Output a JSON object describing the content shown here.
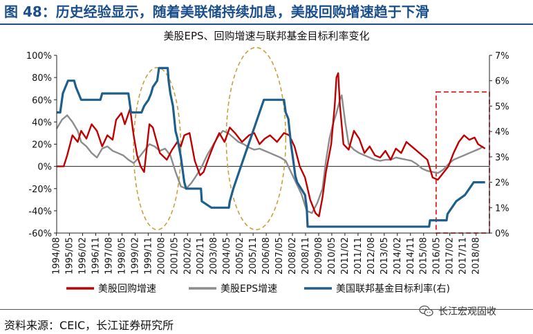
{
  "figure": {
    "title": "图 48：历史经验显示，随着美联储持续加息，美股回购增速趋于下滑",
    "source": "资料来源：CEIC，长江证券研究所",
    "watermark": "长江宏观固收"
  },
  "colors": {
    "buyback": "#c00000",
    "eps": "#8c8c8c",
    "fedrate": "#1f5f8b",
    "title_blue": "#1b4f8c",
    "ellipse": "#c8a040",
    "highlight_box": "#e02020"
  },
  "chart_data": {
    "type": "line",
    "title": "美股EPS、回购增速与联邦基金目标利率变化",
    "x_tick_labels": [
      "1994/08",
      "1995/05",
      "1996/02",
      "1996/11",
      "1997/08",
      "1998/05",
      "1999/02",
      "1999/11",
      "2000/08",
      "2001/05",
      "2002/02",
      "2002/11",
      "2003/08",
      "2004/05",
      "2005/02",
      "2005/11",
      "2006/08",
      "2007/05",
      "2008/02",
      "2008/11",
      "2009/08",
      "2010/05",
      "2011/02",
      "2011/11",
      "2012/08",
      "2013/05",
      "2014/02",
      "2014/11",
      "2015/08",
      "2016/05",
      "2017/02",
      "2017/11",
      "2018/08"
    ],
    "y_left": {
      "min": -60,
      "max": 100,
      "step": 20,
      "unit": "%",
      "tick_labels": [
        "-60%",
        "-40%",
        "-20%",
        "0%",
        "20%",
        "40%",
        "60%",
        "80%",
        "100%"
      ]
    },
    "y_right": {
      "min": 0,
      "max": 7,
      "step": 1,
      "unit": "%",
      "tick_labels": [
        "0%",
        "1%",
        "2%",
        "3%",
        "4%",
        "5%",
        "6%",
        "7%"
      ]
    },
    "legend": [
      "美股回购增速",
      "美股EPS增速",
      "美国联邦基金目标利率(右)"
    ],
    "series": [
      {
        "name": "美股回购增速",
        "axis": "left",
        "color_key": "buyback",
        "points": [
          [
            1994.6,
            0
          ],
          [
            1995.0,
            0
          ],
          [
            1995.2,
            10
          ],
          [
            1995.5,
            28
          ],
          [
            1995.8,
            22
          ],
          [
            1996.0,
            32
          ],
          [
            1996.3,
            25
          ],
          [
            1996.6,
            38
          ],
          [
            1996.9,
            32
          ],
          [
            1997.2,
            18
          ],
          [
            1997.5,
            28
          ],
          [
            1997.8,
            24
          ],
          [
            1998.0,
            42
          ],
          [
            1998.3,
            48
          ],
          [
            1998.5,
            38
          ],
          [
            1998.8,
            52
          ],
          [
            1999.0,
            28
          ],
          [
            1999.2,
            10
          ],
          [
            1999.4,
            0
          ],
          [
            1999.6,
            -5
          ],
          [
            1999.9,
            38
          ],
          [
            2000.1,
            35
          ],
          [
            2000.5,
            12
          ],
          [
            2000.9,
            6
          ],
          [
            2001.2,
            15
          ],
          [
            2001.5,
            22
          ],
          [
            2001.7,
            18
          ],
          [
            2001.9,
            28
          ],
          [
            2002.2,
            30
          ],
          [
            2002.5,
            5
          ],
          [
            2002.8,
            -8
          ],
          [
            2003.0,
            -5
          ],
          [
            2003.3,
            8
          ],
          [
            2003.6,
            20
          ],
          [
            2003.9,
            30
          ],
          [
            2004.2,
            22
          ],
          [
            2004.5,
            35
          ],
          [
            2004.8,
            30
          ],
          [
            2005.2,
            22
          ],
          [
            2005.6,
            28
          ],
          [
            2005.9,
            30
          ],
          [
            2006.2,
            20
          ],
          [
            2006.5,
            25
          ],
          [
            2006.8,
            28
          ],
          [
            2007.2,
            22
          ],
          [
            2007.6,
            30
          ],
          [
            2007.9,
            28
          ],
          [
            2008.2,
            18
          ],
          [
            2008.5,
            0
          ],
          [
            2008.8,
            -10
          ],
          [
            2009.1,
            -30
          ],
          [
            2009.4,
            -42
          ],
          [
            2009.6,
            -45
          ],
          [
            2009.8,
            -28
          ],
          [
            2010.0,
            -5
          ],
          [
            2010.3,
            20
          ],
          [
            2010.5,
            55
          ],
          [
            2010.6,
            80
          ],
          [
            2010.7,
            84
          ],
          [
            2010.8,
            55
          ],
          [
            2011.0,
            20
          ],
          [
            2011.3,
            15
          ],
          [
            2011.6,
            32
          ],
          [
            2011.9,
            25
          ],
          [
            2012.2,
            12
          ],
          [
            2012.5,
            18
          ],
          [
            2012.8,
            10
          ],
          [
            2013.1,
            8
          ],
          [
            2013.4,
            14
          ],
          [
            2013.7,
            6
          ],
          [
            2014.0,
            16
          ],
          [
            2014.3,
            12
          ],
          [
            2014.6,
            22
          ],
          [
            2014.9,
            18
          ],
          [
            2015.2,
            14
          ],
          [
            2015.5,
            10
          ],
          [
            2015.8,
            6
          ],
          [
            2016.1,
            -10
          ],
          [
            2016.4,
            -12
          ],
          [
            2016.7,
            -6
          ],
          [
            2017.0,
            0
          ],
          [
            2017.3,
            12
          ],
          [
            2017.6,
            22
          ],
          [
            2017.9,
            28
          ],
          [
            2018.2,
            24
          ],
          [
            2018.5,
            26
          ],
          [
            2018.7,
            20
          ],
          [
            2018.9,
            18
          ],
          [
            2019.1,
            16
          ]
        ]
      },
      {
        "name": "美股EPS增速",
        "axis": "left",
        "color_key": "eps",
        "points": [
          [
            1994.6,
            34
          ],
          [
            1994.9,
            42
          ],
          [
            1995.2,
            46
          ],
          [
            1995.5,
            40
          ],
          [
            1995.8,
            32
          ],
          [
            1996.0,
            22
          ],
          [
            1996.3,
            18
          ],
          [
            1996.6,
            12
          ],
          [
            1996.9,
            8
          ],
          [
            1997.2,
            16
          ],
          [
            1997.5,
            18
          ],
          [
            1997.8,
            14
          ],
          [
            1998.1,
            12
          ],
          [
            1998.4,
            10
          ],
          [
            1998.7,
            6
          ],
          [
            1999.0,
            3
          ],
          [
            1999.3,
            8
          ],
          [
            1999.6,
            14
          ],
          [
            1999.9,
            20
          ],
          [
            2000.2,
            18
          ],
          [
            2000.5,
            14
          ],
          [
            2000.8,
            16
          ],
          [
            2001.1,
            10
          ],
          [
            2001.4,
            -5
          ],
          [
            2001.7,
            -18
          ],
          [
            2002.0,
            -20
          ],
          [
            2002.3,
            -15
          ],
          [
            2002.6,
            -8
          ],
          [
            2002.9,
            0
          ],
          [
            2003.2,
            10
          ],
          [
            2003.5,
            18
          ],
          [
            2003.8,
            26
          ],
          [
            2004.1,
            32
          ],
          [
            2004.4,
            30
          ],
          [
            2004.7,
            26
          ],
          [
            2005.0,
            22
          ],
          [
            2005.3,
            20
          ],
          [
            2005.6,
            17
          ],
          [
            2005.9,
            15
          ],
          [
            2006.2,
            16
          ],
          [
            2006.5,
            14
          ],
          [
            2006.8,
            12
          ],
          [
            2007.1,
            10
          ],
          [
            2007.4,
            8
          ],
          [
            2007.7,
            5
          ],
          [
            2008.0,
            -5
          ],
          [
            2008.3,
            -15
          ],
          [
            2008.6,
            -25
          ],
          [
            2008.9,
            -40
          ],
          [
            2009.2,
            -42
          ],
          [
            2009.5,
            -33
          ],
          [
            2009.8,
            -20
          ],
          [
            2010.0,
            5
          ],
          [
            2010.2,
            25
          ],
          [
            2010.4,
            38
          ],
          [
            2010.6,
            48
          ],
          [
            2010.8,
            60
          ],
          [
            2010.9,
            64
          ],
          [
            2011.1,
            40
          ],
          [
            2011.3,
            20
          ],
          [
            2011.6,
            15
          ],
          [
            2011.9,
            12
          ],
          [
            2012.2,
            10
          ],
          [
            2012.5,
            8
          ],
          [
            2012.8,
            6
          ],
          [
            2013.1,
            5
          ],
          [
            2013.4,
            6
          ],
          [
            2013.7,
            6
          ],
          [
            2014.0,
            8
          ],
          [
            2014.3,
            7
          ],
          [
            2014.6,
            6
          ],
          [
            2014.9,
            5
          ],
          [
            2015.2,
            2
          ],
          [
            2015.5,
            -2
          ],
          [
            2015.8,
            -4
          ],
          [
            2016.1,
            -5
          ],
          [
            2016.4,
            -6
          ],
          [
            2016.7,
            -3
          ],
          [
            2017.0,
            2
          ],
          [
            2017.3,
            6
          ],
          [
            2017.6,
            8
          ],
          [
            2017.9,
            10
          ],
          [
            2018.2,
            12
          ],
          [
            2018.5,
            14
          ],
          [
            2018.8,
            16
          ],
          [
            2019.0,
            18
          ]
        ]
      },
      {
        "name": "美国联邦基金目标利率(右)",
        "axis": "right",
        "color_key": "fedrate",
        "points": [
          [
            1994.6,
            4.75
          ],
          [
            1994.8,
            4.75
          ],
          [
            1994.95,
            5.5
          ],
          [
            1995.25,
            6.0
          ],
          [
            1995.6,
            6.0
          ],
          [
            1995.7,
            5.75
          ],
          [
            1996.0,
            5.25
          ],
          [
            1997.1,
            5.25
          ],
          [
            1997.2,
            5.5
          ],
          [
            1998.7,
            5.5
          ],
          [
            1998.75,
            5.25
          ],
          [
            1998.85,
            4.75
          ],
          [
            1999.45,
            4.75
          ],
          [
            1999.6,
            5.0
          ],
          [
            1999.85,
            5.25
          ],
          [
            2000.0,
            5.5
          ],
          [
            2000.1,
            5.75
          ],
          [
            2000.35,
            6.0
          ],
          [
            2000.45,
            6.5
          ],
          [
            2000.95,
            6.5
          ],
          [
            2001.0,
            6.0
          ],
          [
            2001.1,
            5.5
          ],
          [
            2001.25,
            5.0
          ],
          [
            2001.4,
            4.0
          ],
          [
            2001.5,
            3.75
          ],
          [
            2001.7,
            3.0
          ],
          [
            2001.9,
            2.0
          ],
          [
            2002.0,
            1.75
          ],
          [
            2002.85,
            1.75
          ],
          [
            2002.9,
            1.25
          ],
          [
            2003.45,
            1.0
          ],
          [
            2004.45,
            1.0
          ],
          [
            2004.5,
            1.25
          ],
          [
            2004.7,
            1.75
          ],
          [
            2004.95,
            2.25
          ],
          [
            2005.2,
            2.75
          ],
          [
            2005.45,
            3.25
          ],
          [
            2005.7,
            3.75
          ],
          [
            2005.95,
            4.25
          ],
          [
            2006.2,
            4.75
          ],
          [
            2006.45,
            5.25
          ],
          [
            2007.6,
            5.25
          ],
          [
            2007.7,
            4.75
          ],
          [
            2007.85,
            4.5
          ],
          [
            2008.0,
            3.5
          ],
          [
            2008.1,
            3.0
          ],
          [
            2008.25,
            2.25
          ],
          [
            2008.35,
            2.0
          ],
          [
            2008.8,
            1.5
          ],
          [
            2008.9,
            1.0
          ],
          [
            2008.95,
            0.25
          ],
          [
            2015.9,
            0.25
          ],
          [
            2015.95,
            0.5
          ],
          [
            2016.9,
            0.5
          ],
          [
            2016.95,
            0.75
          ],
          [
            2017.2,
            1.0
          ],
          [
            2017.45,
            1.25
          ],
          [
            2017.95,
            1.5
          ],
          [
            2018.2,
            1.75
          ],
          [
            2018.45,
            2.0
          ],
          [
            2019.1,
            2.0
          ]
        ]
      }
    ],
    "annotations": [
      {
        "type": "ellipse",
        "from": 1999.0,
        "to": 2001.7,
        "center_y": 16,
        "semi_y": 73
      },
      {
        "type": "ellipse",
        "from": 2004.3,
        "to": 2007.7,
        "center_y": 25,
        "semi_y": 82
      },
      {
        "type": "box",
        "from": 2016.3,
        "to": 2019.35,
        "top": 67,
        "bottom": -60
      }
    ]
  }
}
